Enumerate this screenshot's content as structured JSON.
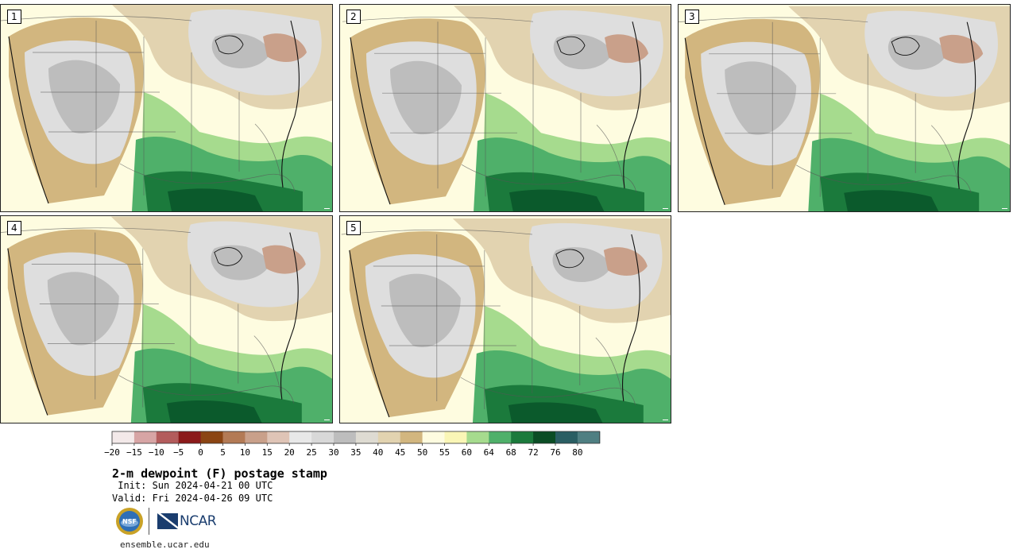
{
  "product": {
    "title": "2-m dewpoint (F) postage stamp",
    "init": " Init: Sun 2024-04-21 00 UTC",
    "valid": "Valid: Fri 2024-04-26 09 UTC",
    "site": "ensemble.ucar.edu"
  },
  "members": [
    {
      "label": "1"
    },
    {
      "label": "2"
    },
    {
      "label": "3"
    },
    {
      "label": "4"
    },
    {
      "label": "5"
    }
  ],
  "colorbar": {
    "ticks": [
      "−20",
      "−15",
      "−10",
      "−5",
      "0",
      "5",
      "10",
      "15",
      "20",
      "25",
      "30",
      "35",
      "40",
      "45",
      "50",
      "55",
      "60",
      "64",
      "68",
      "72",
      "76",
      "80"
    ],
    "colors": [
      "#f3e9e9",
      "#d7a5a5",
      "#b35c5c",
      "#8b1a1a",
      "#8b4513",
      "#b37a55",
      "#c9a08a",
      "#dfc4b6",
      "#e8e8e8",
      "#d8d8d8",
      "#bdbdbd",
      "#dedbd2",
      "#e2d3b0",
      "#d2b67f",
      "#fefce0",
      "#faf6b6",
      "#a6db8e",
      "#4fb06a",
      "#1b7a3c",
      "#0b4d25",
      "#2a5e63",
      "#4f7f82"
    ]
  },
  "palette": {
    "background": "#fefce0",
    "tan": "#d2b67f",
    "light_tan": "#e2d3b0",
    "grey": "#bdbdbd",
    "light_grey": "#dedede",
    "brown": "#c9a08a",
    "light_green": "#a6db8e",
    "green": "#4fb06a",
    "dark_green": "#1b7a3c",
    "darkest_green": "#0b5a2c"
  },
  "logos": {
    "nsf": "nsf-logo",
    "ncar": "NCAR"
  }
}
